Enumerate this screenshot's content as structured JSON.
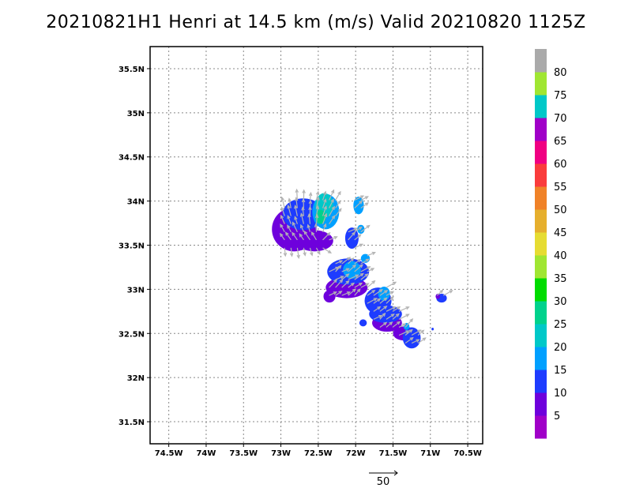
{
  "chart_data": {
    "type": "heatmap",
    "title": "20210821H1 Henri at 14.5 km (m/s) Valid 20210820 1125Z",
    "xlabel": "",
    "ylabel": "",
    "xlim": [
      -74.75,
      -70.3
    ],
    "ylim": [
      31.25,
      35.75
    ],
    "grid": true,
    "x_ticks": [
      {
        "value": -74.5,
        "label": "74.5W"
      },
      {
        "value": -74.0,
        "label": "74W"
      },
      {
        "value": -73.5,
        "label": "73.5W"
      },
      {
        "value": -73.0,
        "label": "73W"
      },
      {
        "value": -72.5,
        "label": "72.5W"
      },
      {
        "value": -72.0,
        "label": "72W"
      },
      {
        "value": -71.5,
        "label": "71.5W"
      },
      {
        "value": -71.0,
        "label": "71W"
      },
      {
        "value": -70.5,
        "label": "70.5W"
      }
    ],
    "y_ticks": [
      {
        "value": 31.5,
        "label": "31.5N"
      },
      {
        "value": 32.0,
        "label": "32N"
      },
      {
        "value": 32.5,
        "label": "32.5N"
      },
      {
        "value": 33.0,
        "label": "33N"
      },
      {
        "value": 33.5,
        "label": "33.5N"
      },
      {
        "value": 34.0,
        "label": "34N"
      },
      {
        "value": 34.5,
        "label": "34.5N"
      },
      {
        "value": 35.0,
        "label": "35N"
      },
      {
        "value": 35.5,
        "label": "35.5N"
      }
    ],
    "colorbar": {
      "labels": [
        "5",
        "10",
        "15",
        "20",
        "25",
        "30",
        "35",
        "40",
        "45",
        "50",
        "55",
        "60",
        "65",
        "70",
        "75",
        "80"
      ],
      "colors": [
        "#a000c8",
        "#6e00dc",
        "#1e3cff",
        "#00a0ff",
        "#00c8c8",
        "#00d28c",
        "#00dc00",
        "#a0e632",
        "#e6dc32",
        "#e6af2d",
        "#f08228",
        "#fa3c3c",
        "#f00082",
        "#a000c8",
        "#00c8c8",
        "#a0e632",
        "#aaaaaa"
      ]
    },
    "reference_vector": {
      "label": "50",
      "value": 50
    },
    "regions": [
      {
        "cat": 1,
        "lon": -72.82,
        "lat": 33.68,
        "rx": 0.3,
        "ry": 0.25
      },
      {
        "cat": 2,
        "lon": -72.7,
        "lat": 33.85,
        "rx": 0.28,
        "ry": 0.18
      },
      {
        "cat": 1,
        "lon": -72.55,
        "lat": 33.55,
        "rx": 0.25,
        "ry": 0.12
      },
      {
        "cat": 3,
        "lon": -72.4,
        "lat": 33.88,
        "rx": 0.18,
        "ry": 0.2
      },
      {
        "cat": 4,
        "lon": -72.42,
        "lat": 33.95,
        "rx": 0.12,
        "ry": 0.14
      },
      {
        "cat": 5,
        "lon": -72.47,
        "lat": 33.82,
        "rx": 0.07,
        "ry": 0.08
      },
      {
        "cat": 3,
        "lon": -71.96,
        "lat": 33.95,
        "rx": 0.07,
        "ry": 0.1
      },
      {
        "cat": 2,
        "lon": -72.05,
        "lat": 33.58,
        "rx": 0.09,
        "ry": 0.12
      },
      {
        "cat": 3,
        "lon": -71.93,
        "lat": 33.68,
        "rx": 0.05,
        "ry": 0.05
      },
      {
        "cat": 1,
        "lon": -72.12,
        "lat": 33.02,
        "rx": 0.28,
        "ry": 0.12
      },
      {
        "cat": 2,
        "lon": -72.1,
        "lat": 33.2,
        "rx": 0.28,
        "ry": 0.15
      },
      {
        "cat": 3,
        "lon": -72.05,
        "lat": 33.22,
        "rx": 0.12,
        "ry": 0.1
      },
      {
        "cat": 3,
        "lon": -71.87,
        "lat": 33.35,
        "rx": 0.06,
        "ry": 0.05
      },
      {
        "cat": 1,
        "lon": -72.35,
        "lat": 32.92,
        "rx": 0.08,
        "ry": 0.07
      },
      {
        "cat": 2,
        "lon": -71.7,
        "lat": 32.87,
        "rx": 0.18,
        "ry": 0.15
      },
      {
        "cat": 3,
        "lon": -71.62,
        "lat": 32.95,
        "rx": 0.08,
        "ry": 0.08
      },
      {
        "cat": 1,
        "lon": -71.58,
        "lat": 32.62,
        "rx": 0.2,
        "ry": 0.1
      },
      {
        "cat": 2,
        "lon": -71.6,
        "lat": 32.72,
        "rx": 0.22,
        "ry": 0.1
      },
      {
        "cat": 1,
        "lon": -71.35,
        "lat": 32.5,
        "rx": 0.15,
        "ry": 0.08
      },
      {
        "cat": 2,
        "lon": -71.25,
        "lat": 32.45,
        "rx": 0.12,
        "ry": 0.12
      },
      {
        "cat": 2,
        "lon": -71.9,
        "lat": 32.62,
        "rx": 0.05,
        "ry": 0.04
      },
      {
        "cat": 3,
        "lon": -71.32,
        "lat": 32.58,
        "rx": 0.04,
        "ry": 0.04
      },
      {
        "cat": 2,
        "lon": -70.85,
        "lat": 32.9,
        "rx": 0.07,
        "ry": 0.05
      },
      {
        "cat": 1,
        "lon": -70.9,
        "lat": 32.92,
        "rx": 0.03,
        "ry": 0.03
      },
      {
        "cat": 2,
        "lon": -70.97,
        "lat": 32.55,
        "rx": 0.015,
        "ry": 0.015
      }
    ]
  }
}
